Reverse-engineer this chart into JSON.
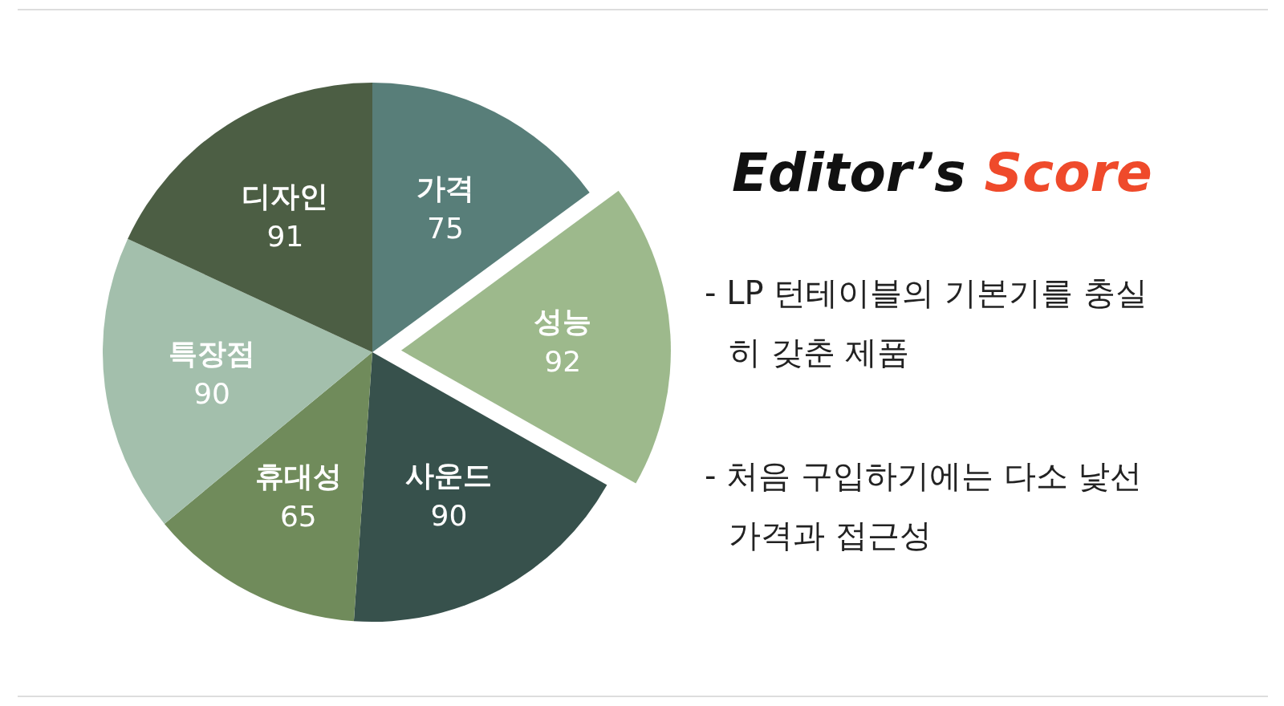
{
  "chart_data": {
    "type": "pie",
    "title": "Editor’s Score",
    "categories": [
      "가격",
      "성능",
      "사운드",
      "휴대성",
      "특장점",
      "디자인"
    ],
    "values": [
      75,
      92,
      90,
      65,
      90,
      91
    ],
    "colors": [
      "#587e79",
      "#9db98c",
      "#37514c",
      "#708b5b",
      "#a3bfac",
      "#4c5e44"
    ],
    "data_labels": true,
    "annotations": [
      "- LP 턴테이블의 기본기를 충실히 갖춘 제품",
      "- 처음 구입하기에는 다소 낯선 가격과 접근성"
    ]
  }
}
